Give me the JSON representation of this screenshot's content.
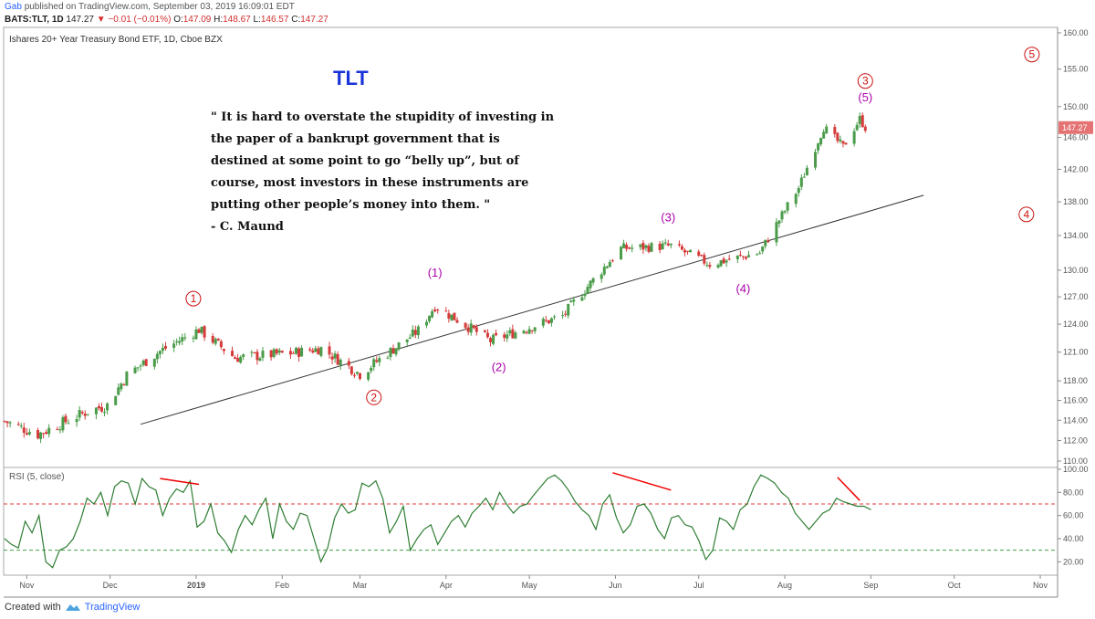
{
  "header": {
    "publisher": "Gab",
    "publish_text": "published on TradingView.com, September 03, 2019 16:09:01 EDT",
    "symbol_line": "BATS:TLT, 1D",
    "last": "147.27",
    "change": "▼ −0.01 (−0.01%)",
    "o_label": "O:",
    "o": "147.09",
    "h_label": "H:",
    "h": "148.67",
    "l_label": "L:",
    "l": "146.57",
    "c_label": "C:",
    "c": "147.27"
  },
  "footer": {
    "created_with": "Created with",
    "brand": "TradingView"
  },
  "colors": {
    "up": "#4a9c4a",
    "down": "#d63b3b",
    "wave_red": "#cc1111",
    "wave_purple": "#aa00aa",
    "rsi_line": "#2e7d32",
    "rsi_upper": "#e53935",
    "rsi_lower": "#43a047",
    "title": "#1a33d9",
    "price_badge": "#e57373"
  },
  "chart_data": [
    {
      "type": "candlestick",
      "title": "Ishares 20+ Year Treasury Bond ETF, 1D, Cboe BZX",
      "annotation_title": "TLT",
      "quote_lines": [
        "\" It is hard to overstate the stupidity of investing in",
        "the paper of a bankrupt government that is",
        "destined at some point to go “belly up”, but of",
        "course, most investors in these instruments are",
        "putting other people’s money into them. \"",
        "- C. Maund"
      ],
      "x_ticks": [
        "Nov",
        "Dec",
        "2019",
        "Feb",
        "Mar",
        "Apr",
        "May",
        "Jun",
        "Jul",
        "Aug",
        "Sep",
        "Oct",
        "Nov"
      ],
      "y_ticks": [
        "110.00",
        "112.00",
        "114.00",
        "116.00",
        "118.00",
        "121.00",
        "124.00",
        "127.00",
        "130.00",
        "134.00",
        "138.00",
        "142.00",
        "146.00",
        "150.00",
        "155.00",
        "160.00"
      ],
      "y_log_scale": true,
      "last_price_label": "147.27",
      "monthly_closes_approx": [
        {
          "x": "2018-10-24",
          "close": 113.9
        },
        {
          "x": "2018-11-05",
          "close": 112.6
        },
        {
          "x": "2018-11-23",
          "close": 114.9
        },
        {
          "x": "2018-11-30",
          "close": 115.5
        },
        {
          "x": "2018-12-07",
          "close": 118.6
        },
        {
          "x": "2018-12-19",
          "close": 121.1
        },
        {
          "x": "2019-01-02",
          "close": 123.4
        },
        {
          "x": "2019-01-15",
          "close": 120.4
        },
        {
          "x": "2019-02-04",
          "close": 120.9
        },
        {
          "x": "2019-02-15",
          "close": 121.4
        },
        {
          "x": "2019-03-01",
          "close": 118.7
        },
        {
          "x": "2019-03-22",
          "close": 123.3
        },
        {
          "x": "2019-03-28",
          "close": 126.0
        },
        {
          "x": "2019-04-17",
          "close": 122.2
        },
        {
          "x": "2019-05-13",
          "close": 124.9
        },
        {
          "x": "2019-06-03",
          "close": 132.5
        },
        {
          "x": "2019-06-21",
          "close": 132.8
        },
        {
          "x": "2019-07-05",
          "close": 130.7
        },
        {
          "x": "2019-07-23",
          "close": 132.0
        },
        {
          "x": "2019-08-06",
          "close": 139.7
        },
        {
          "x": "2019-08-15",
          "close": 147.3
        },
        {
          "x": "2019-08-22",
          "close": 144.8
        },
        {
          "x": "2019-08-28",
          "close": 148.4
        },
        {
          "x": "2019-08-30",
          "close": 147.3
        }
      ],
      "wave_labels": [
        {
          "text": "1",
          "style": "circled",
          "color": "red",
          "date": "2018-12-31",
          "price": 126.8
        },
        {
          "text": "2",
          "style": "circled",
          "color": "red",
          "date": "2019-03-06",
          "price": 116.3
        },
        {
          "text": "3",
          "style": "circled",
          "color": "red",
          "date": "2019-08-30",
          "price": 153.4
        },
        {
          "text": "4",
          "style": "circled",
          "color": "red",
          "date": "2019-10-27",
          "price": 136.5
        },
        {
          "text": "5",
          "style": "circled",
          "color": "red",
          "date": "2019-10-29",
          "price": 157.0
        },
        {
          "text": "(1)",
          "style": "paren",
          "color": "purple",
          "date": "2019-03-28",
          "price": 129.8
        },
        {
          "text": "(2)",
          "style": "paren",
          "color": "purple",
          "date": "2019-04-20",
          "price": 119.5
        },
        {
          "text": "(3)",
          "style": "paren",
          "color": "purple",
          "date": "2019-06-20",
          "price": 136.2
        },
        {
          "text": "(4)",
          "style": "paren",
          "color": "purple",
          "date": "2019-07-17",
          "price": 128.0
        },
        {
          "text": "(5)",
          "style": "paren",
          "color": "purple",
          "date": "2019-08-30",
          "price": 151.3
        }
      ],
      "trendline": {
        "from": {
          "date": "2018-12-12",
          "price": 113.6
        },
        "to": {
          "date": "2019-09-20",
          "price": 138.8
        }
      }
    },
    {
      "type": "line",
      "title": "RSI (5, close)",
      "y_ticks": [
        "20.00",
        "40.00",
        "60.00",
        "80.00",
        "100.00"
      ],
      "ylim": [
        10,
        100
      ],
      "overbought": 70,
      "oversold": 30,
      "values_approx": [
        40,
        35,
        32,
        55,
        45,
        60,
        20,
        15,
        30,
        33,
        40,
        55,
        75,
        70,
        80,
        60,
        85,
        90,
        88,
        70,
        92,
        85,
        82,
        60,
        75,
        83,
        80,
        90,
        50,
        55,
        70,
        45,
        38,
        28,
        48,
        60,
        52,
        65,
        75,
        40,
        70,
        55,
        48,
        62,
        60,
        40,
        20,
        32,
        58,
        70,
        62,
        65,
        88,
        85,
        90,
        75,
        45,
        55,
        68,
        30,
        40,
        48,
        52,
        35,
        45,
        55,
        60,
        50,
        62,
        68,
        75,
        65,
        80,
        70,
        62,
        68,
        70,
        78,
        85,
        92,
        95,
        90,
        82,
        72,
        65,
        60,
        48,
        70,
        78,
        58,
        45,
        52,
        68,
        70,
        62,
        48,
        40,
        58,
        60,
        52,
        50,
        38,
        22,
        30,
        58,
        55,
        48,
        65,
        70,
        85,
        95,
        92,
        88,
        80,
        75,
        62,
        55,
        48,
        55,
        62,
        65,
        75,
        72,
        70,
        68,
        68,
        65
      ]
    }
  ],
  "divergence_lines": [
    {
      "from": {
        "date": "2018-12-19",
        "rsi": 92
      },
      "to": {
        "date": "2019-01-02",
        "rsi": 87
      }
    },
    {
      "from": {
        "date": "2019-05-31",
        "rsi": 97
      },
      "to": {
        "date": "2019-06-21",
        "rsi": 82
      }
    },
    {
      "from": {
        "date": "2019-08-20",
        "rsi": 93
      },
      "to": {
        "date": "2019-08-28",
        "rsi": 73
      }
    }
  ]
}
